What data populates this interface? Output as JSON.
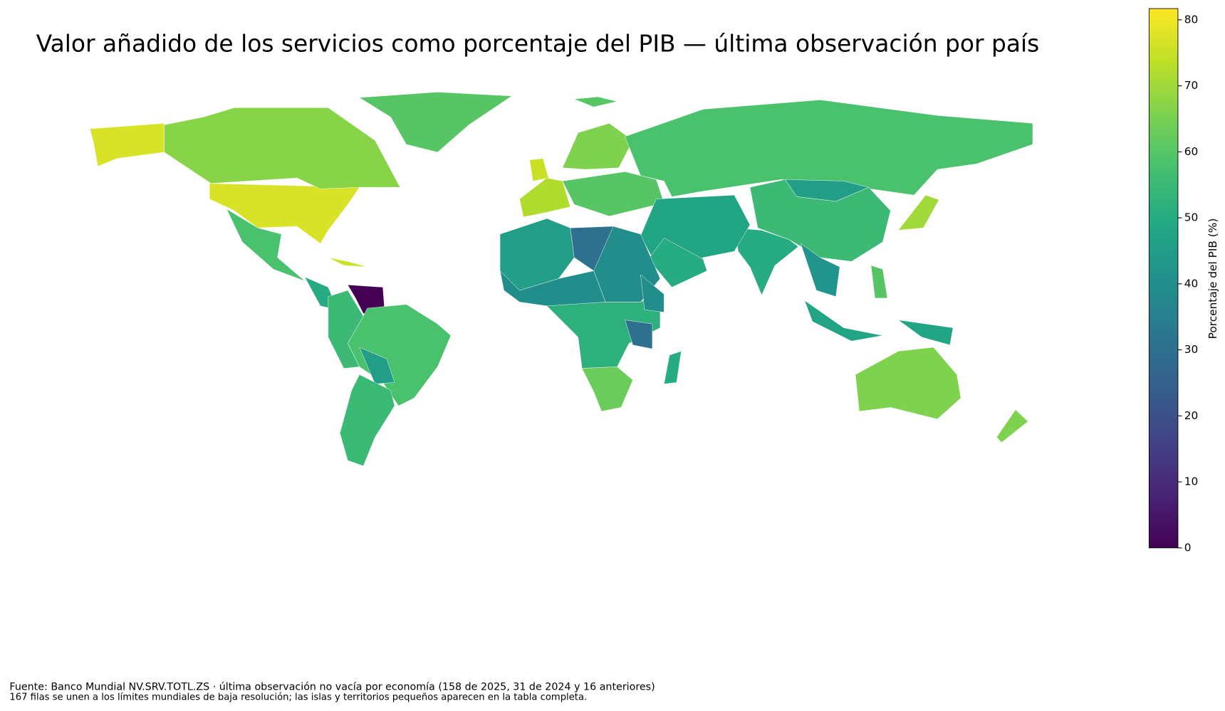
{
  "chart_data": {
    "type": "choropleth",
    "title": "Valor añadido de los servicios como porcentaje del PIB — última observación por país",
    "colorbar_label": "Porcentaje del PIB (%)",
    "colormap": "viridis",
    "clim": [
      0,
      81.7
    ],
    "cticks": [
      0,
      10,
      20,
      30,
      40,
      50,
      60,
      70,
      80
    ],
    "values": [
      77,
      77,
      67,
      60,
      58,
      50,
      0,
      58,
      55,
      45,
      55,
      72,
      75,
      66,
      60,
      58,
      45,
      55,
      70,
      50,
      42,
      48,
      50,
      45,
      30,
      40,
      40,
      52,
      40,
      30,
      63,
      50,
      48,
      48,
      60,
      66,
      66,
      60,
      75
    ],
    "notes": [
      "Fuente: Banco Mundial NV.SRV.TOTL.ZS · última observación no vacía por economía (158 de 2025, 31 de 2024 y 16 anteriores)",
      "167 filas se unen a los límites mundiales de baja resolución; las islas y territorios pequeños aparecen en la tabla completa."
    ]
  }
}
